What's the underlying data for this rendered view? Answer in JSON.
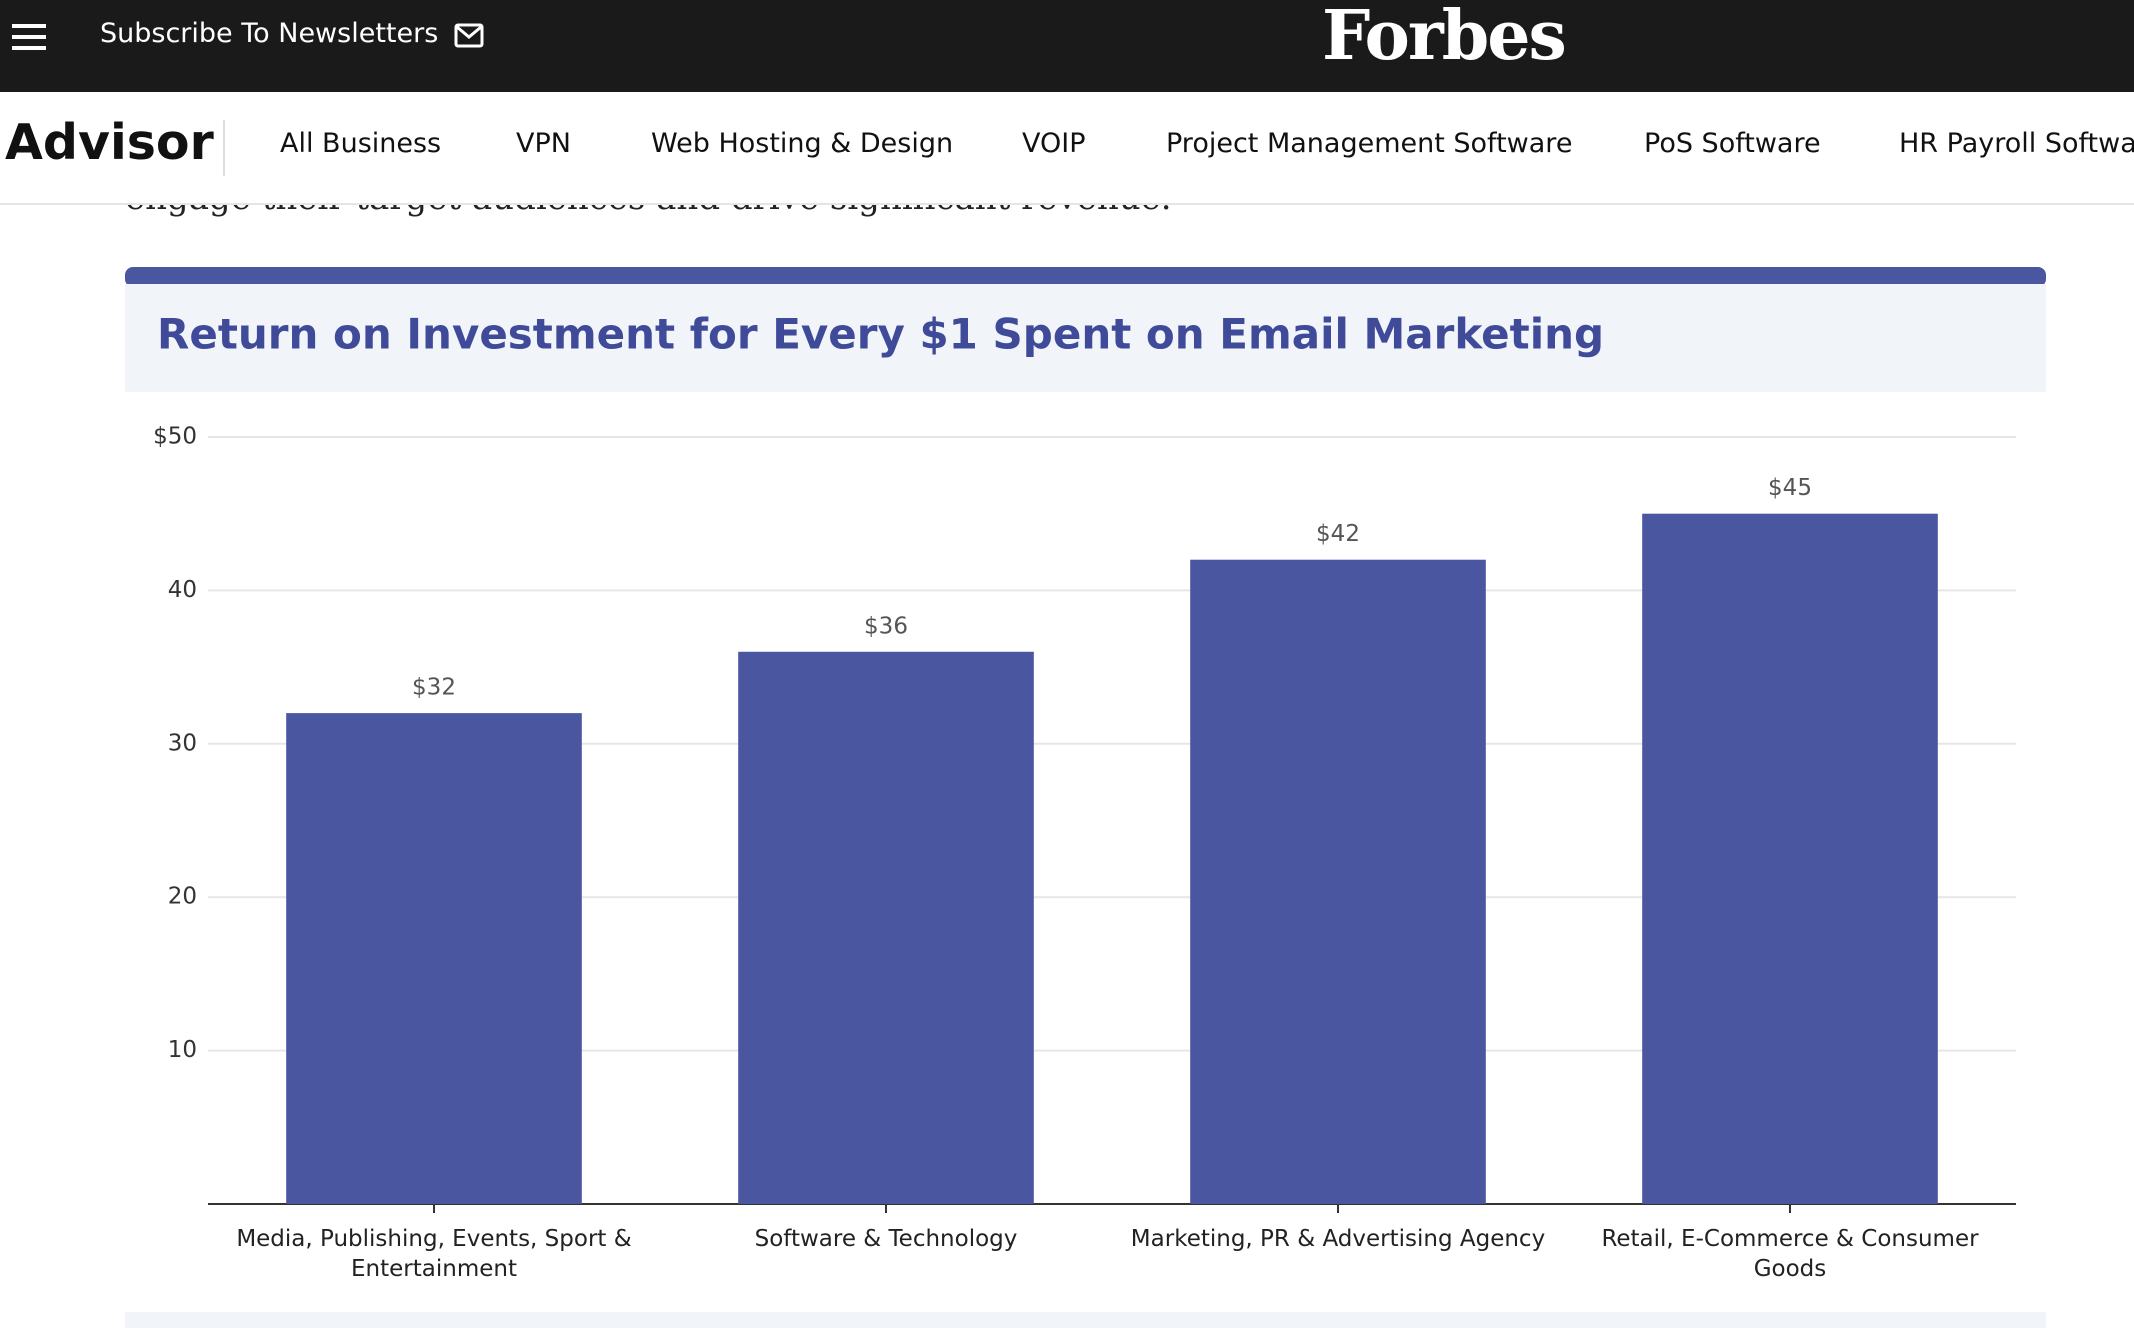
{
  "header": {
    "subscribe": "Subscribe To Newsletters",
    "logo": "Forbes"
  },
  "nav": {
    "brand": "Advisor",
    "items": [
      "All Business",
      "VPN",
      "Web Hosting & Design",
      "VOIP",
      "Project Management Software",
      "PoS Software",
      "HR Payroll Software"
    ]
  },
  "article": {
    "text": "engage their target audiences and drive significant revenue."
  },
  "chart_data": {
    "type": "bar",
    "title": "Return on Investment for Every $1 Spent on Email Marketing",
    "categories": [
      "Media, Publishing, Events, Sport & Entertainment",
      "Software & Technology",
      "Marketing, PR & Advertising Agency",
      "Retail, E-Commerce & Consumer Goods"
    ],
    "values": [
      32,
      36,
      42,
      45
    ],
    "value_labels": [
      "$32",
      "$36",
      "$42",
      "$45"
    ],
    "color": "#4a56a0",
    "ylim": [
      0,
      50
    ],
    "yticks": [
      {
        "value": 50,
        "label": "$50"
      },
      40,
      30,
      20,
      10
    ],
    "grid": true
  }
}
